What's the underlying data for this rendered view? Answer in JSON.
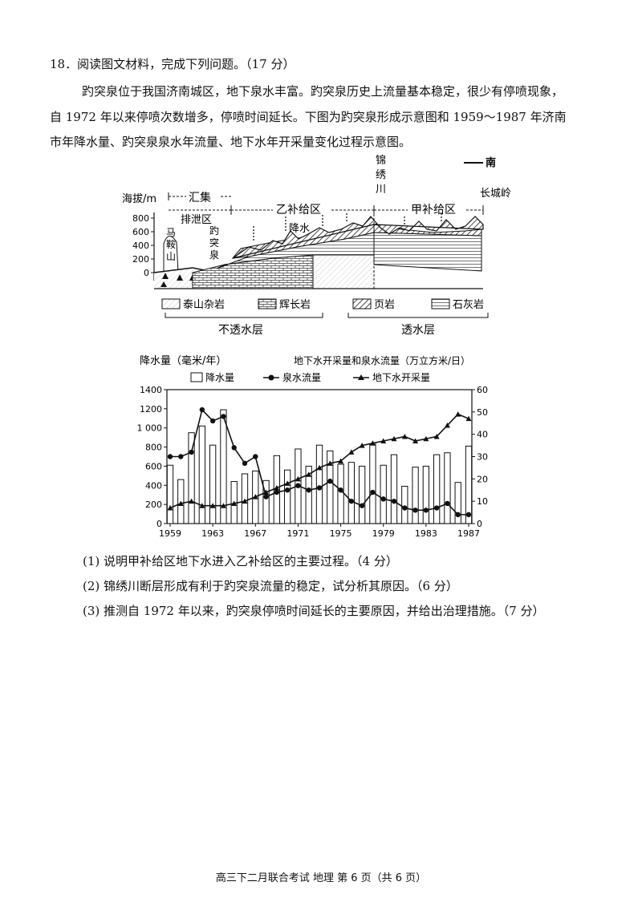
{
  "question": {
    "title": "18．阅读图文材料，完成下列问题。（17 分）",
    "para1": "趵突泉位于我国济南城区，地下泉水丰富。趵突泉历史上流量基本稳定，很少有停喷现象，",
    "para2": "自 1972 年以来停喷次数增多，停喷时间延长。下图为趵突泉形成示意图和 1959～1987 年济南",
    "para3": "市年降水量、趵突泉泉水年流量、地下水年开采量变化过程示意图。"
  },
  "profile_figure": {
    "direction": "南",
    "axis_label": "海拔/m",
    "y_ticks": [
      "800",
      "600",
      "400",
      "200",
      "0"
    ],
    "labels": {
      "huiji": "汇集",
      "paixie": "排泄区",
      "yi_zone": "乙补给区",
      "jia_zone": "甲补给区",
      "jinxiu": [
        "锦",
        "绣",
        "川"
      ],
      "changcheng": "长城岭",
      "jiangshui": "降水",
      "mashan": [
        "马",
        "鞍",
        "山"
      ],
      "baotu": [
        "趵",
        "突",
        "泉"
      ]
    },
    "legend": {
      "taishan": "泰山杂岩",
      "huichang": "辉长岩",
      "yeyan": "页岩",
      "shihui": "石灰岩",
      "impermeable": "不透水层",
      "permeable": "透水层"
    }
  },
  "chart_data": {
    "type": "bar+line",
    "title": "地下水开采量和泉水流量（万立方米/日）",
    "ylabel_left": "降水量（毫米/年）",
    "legend": [
      "降水量",
      "泉水流量",
      "地下水开采量"
    ],
    "x_ticks": [
      "1959",
      "1963",
      "1967",
      "1971",
      "1975",
      "1979",
      "1983",
      "1987"
    ],
    "y_left_ticks": [
      "1400",
      "1200",
      "1 000",
      "800",
      "600",
      "400",
      "200",
      "0"
    ],
    "y_right_ticks": [
      "60",
      "50",
      "40",
      "30",
      "20",
      "10",
      "0"
    ],
    "ylim_left": [
      0,
      1400
    ],
    "ylim_right": [
      0,
      60
    ],
    "years": [
      1959,
      1960,
      1961,
      1962,
      1963,
      1964,
      1965,
      1966,
      1967,
      1968,
      1969,
      1970,
      1971,
      1972,
      1973,
      1974,
      1975,
      1976,
      1977,
      1978,
      1979,
      1980,
      1981,
      1982,
      1983,
      1984,
      1985,
      1986,
      1987
    ],
    "series": [
      {
        "name": "降水量",
        "values": [
          610,
          460,
          950,
          1020,
          820,
          1190,
          440,
          520,
          550,
          450,
          710,
          560,
          780,
          600,
          820,
          760,
          620,
          640,
          600,
          830,
          610,
          720,
          390,
          590,
          600,
          720,
          740,
          430,
          810
        ]
      },
      {
        "name": "泉水流量",
        "values": [
          30,
          30,
          32,
          51,
          46,
          48,
          34,
          27,
          30,
          12,
          14,
          15,
          17,
          15,
          16,
          19,
          15,
          10,
          8,
          14,
          11,
          10,
          7,
          6,
          6,
          7,
          9,
          4,
          4
        ]
      },
      {
        "name": "地下水开采量",
        "values": [
          7,
          9,
          10,
          8,
          8,
          8,
          9,
          10,
          12,
          14,
          16,
          18,
          20,
          22,
          25,
          27,
          28,
          32,
          35,
          36,
          37,
          38,
          39,
          37,
          38,
          39,
          44,
          49,
          47
        ]
      }
    ]
  },
  "subquestions": [
    "(1)  说明甲补给区地下水进入乙补给区的主要过程。（4 分）",
    "(2)  锦绣川断层形成有利于趵突泉流量的稳定，试分析其原因。（6 分）",
    "(3)  推测自 1972 年以来，趵突泉停喷时间延长的主要原因，并给出治理措施。（7 分）"
  ],
  "footer": "高三下二月联合考试 地理 第 6 页（共 6 页）"
}
